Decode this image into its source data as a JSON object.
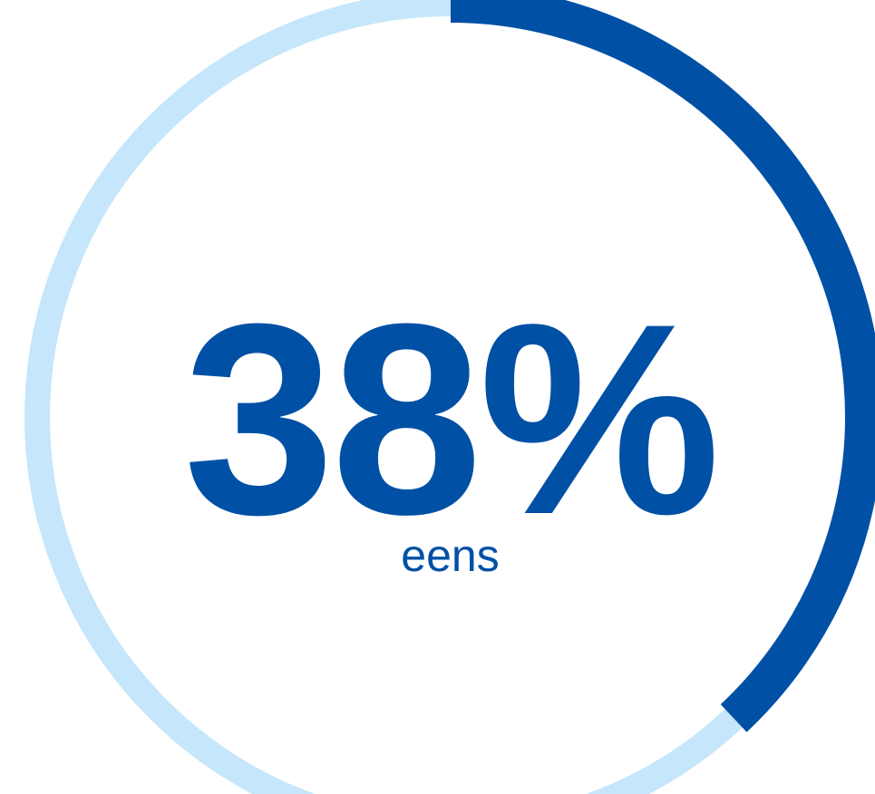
{
  "chart_data": {
    "type": "pie",
    "value": 38,
    "value_label": "38%",
    "caption": "eens",
    "colors": {
      "filled": "#0050A5",
      "track": "#C5E6FB",
      "text": "#0050A5",
      "background": "#FFFFFF"
    }
  }
}
